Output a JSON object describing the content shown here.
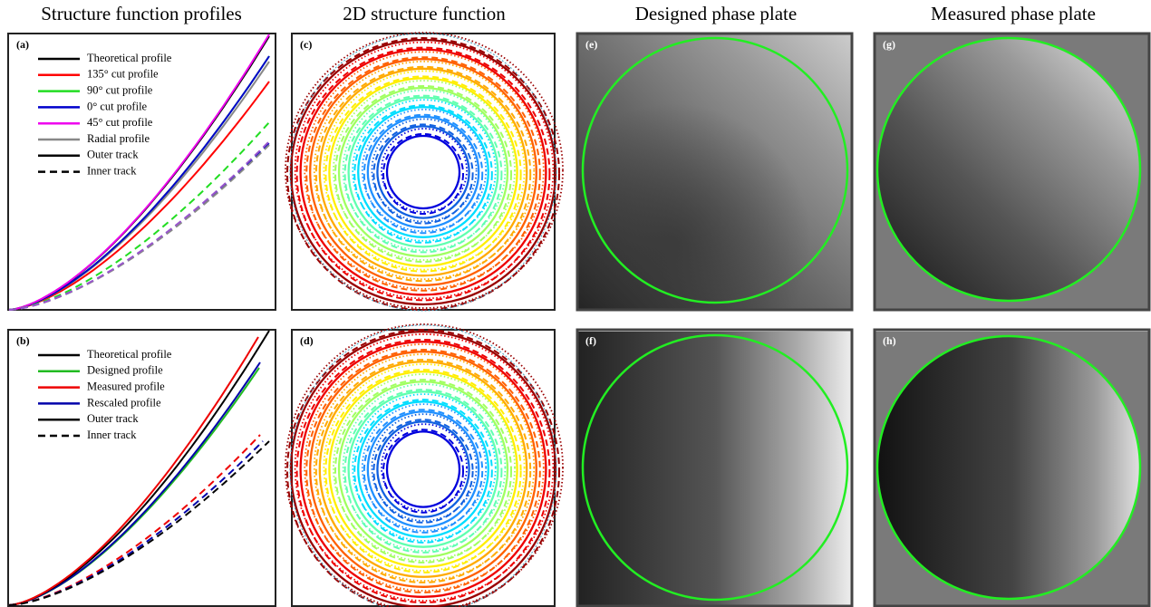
{
  "column_titles": [
    "Structure function profiles",
    "2D structure function",
    "Designed phase plate",
    "Measured phase plate"
  ],
  "panels": [
    {
      "label": "(a)",
      "legend": [
        {
          "text": "Theoretical profile",
          "color": "#000000",
          "style": "solid"
        },
        {
          "text": "135° cut profile",
          "color": "#ff0000",
          "style": "solid"
        },
        {
          "text": "90° cut profile",
          "color": "#22dd22",
          "style": "solid"
        },
        {
          "text": "0° cut profile",
          "color": "#0000cc",
          "style": "solid"
        },
        {
          "text": "45° cut profile",
          "color": "#ee00ee",
          "style": "solid"
        },
        {
          "text": "Radial profile",
          "color": "#888888",
          "style": "solid"
        },
        {
          "text": "Outer track",
          "color": "#000000",
          "style": "solid"
        },
        {
          "text": "Inner track",
          "color": "#000000",
          "style": "dashed"
        }
      ]
    },
    {
      "label": "(b)",
      "legend": [
        {
          "text": "Theoretical profile",
          "color": "#000000",
          "style": "solid"
        },
        {
          "text": "Designed profile",
          "color": "#22bb22",
          "style": "solid"
        },
        {
          "text": "Measured profile",
          "color": "#ee0000",
          "style": "solid"
        },
        {
          "text": "Rescaled profile",
          "color": "#0000aa",
          "style": "solid"
        },
        {
          "text": "Outer track",
          "color": "#000000",
          "style": "solid"
        },
        {
          "text": "Inner track",
          "color": "#000000",
          "style": "dashed"
        }
      ]
    },
    {
      "label": "(c)"
    },
    {
      "label": "(d)"
    },
    {
      "label": "(e)"
    },
    {
      "label": "(f)"
    },
    {
      "label": "(g)"
    },
    {
      "label": "(h)"
    }
  ]
}
